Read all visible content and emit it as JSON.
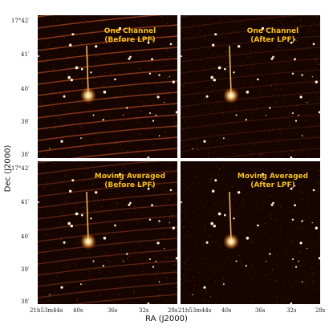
{
  "figure": {
    "ylabel": "Dec (J2000)",
    "xlabel": "RA (J2000)",
    "y_ticks": [
      "17°42′",
      "41′",
      "40′",
      "39′",
      "38′"
    ],
    "x_ticks_left": [
      "21h53m44s",
      "40s",
      "36s",
      "32s",
      "28s"
    ],
    "x_ticks_right": [
      "21h53m44s",
      "40s",
      "36s",
      "32s",
      "28s"
    ]
  },
  "panels": [
    {
      "line1": "One Channel",
      "line2": "(Before LPF)",
      "stripes": "strong"
    },
    {
      "line1": "One Channel",
      "line2": "(After LPF)",
      "stripes": "faint"
    },
    {
      "line1": "Moving Averaged",
      "line2": "(Before LPF)",
      "stripes": "medium"
    },
    {
      "line1": "Moving Averaged",
      "line2": "(After LPF)",
      "stripes": "none"
    }
  ],
  "colors": {
    "title": "#f5c21a",
    "background": "#150400",
    "star": "#fff4d6"
  }
}
